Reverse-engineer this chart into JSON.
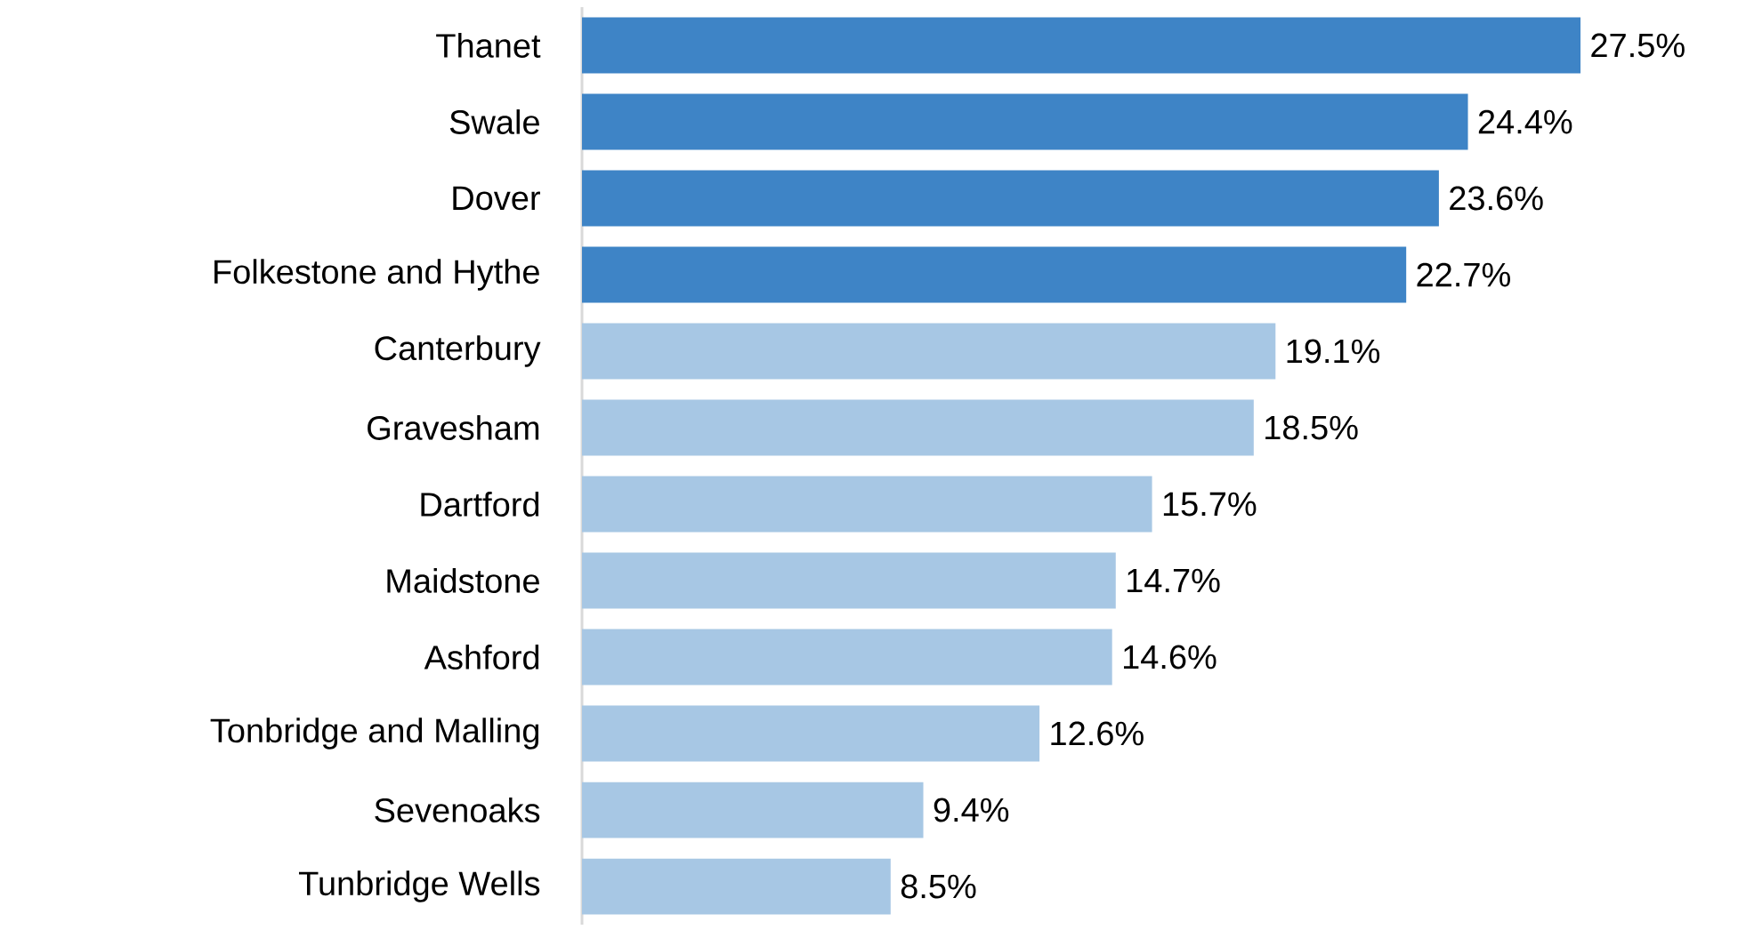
{
  "chart_data": {
    "type": "bar",
    "orientation": "horizontal",
    "categories": [
      "Thanet",
      "Swale",
      "Dover",
      "Folkestone and Hythe",
      "Canterbury",
      "Gravesham",
      "Dartford",
      "Maidstone",
      "Ashford",
      "Tonbridge and Malling",
      "Sevenoaks",
      "Tunbridge Wells"
    ],
    "values": [
      27.5,
      24.4,
      23.6,
      22.7,
      19.1,
      18.5,
      15.7,
      14.7,
      14.6,
      12.6,
      9.4,
      8.5
    ],
    "value_labels": [
      "27.5%",
      "24.4%",
      "23.6%",
      "22.7%",
      "19.1%",
      "18.5%",
      "15.7%",
      "14.7%",
      "14.6%",
      "12.6%",
      "9.4%",
      "8.5%"
    ],
    "colors": [
      "#3e84c6",
      "#3e84c6",
      "#3e84c6",
      "#3e84c6",
      "#a7c7e4",
      "#a7c7e4",
      "#a7c7e4",
      "#a7c7e4",
      "#a7c7e4",
      "#a7c7e4",
      "#a7c7e4",
      "#a7c7e4"
    ]
  }
}
